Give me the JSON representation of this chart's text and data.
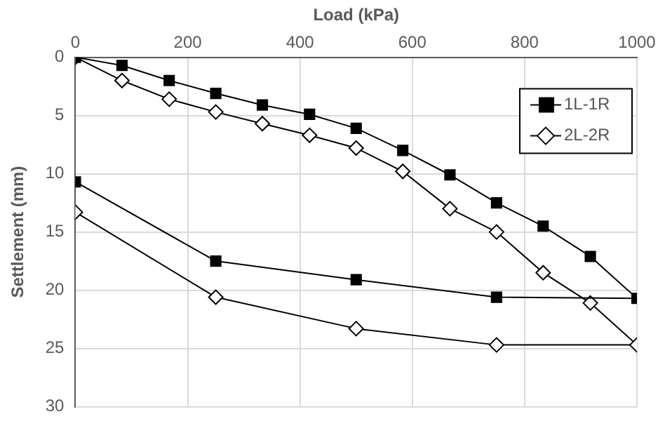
{
  "chart_data": {
    "type": "line",
    "xlabel": "Load (kPa)",
    "ylabel": "Settlement (mm)",
    "xlim": [
      0,
      1000
    ],
    "xticks": [
      0,
      200,
      400,
      600,
      800,
      1000
    ],
    "ylim": [
      30,
      0
    ],
    "yticks": [
      0,
      5,
      10,
      15,
      20,
      25,
      30
    ],
    "grid": true,
    "legend": "top right",
    "line_style": "solid",
    "series": [
      {
        "name": "1L-1R",
        "color": "#000000",
        "marker": "square",
        "x": [
          0,
          83,
          167,
          250,
          333,
          417,
          500,
          583,
          667,
          750,
          833,
          917,
          1000,
          750,
          500,
          250,
          0
        ],
        "values": [
          0,
          0.7,
          2.0,
          3.1,
          4.1,
          4.9,
          6.1,
          8.0,
          10.1,
          12.5,
          14.5,
          17.1,
          20.7,
          20.6,
          19.1,
          17.5,
          10.7
        ]
      },
      {
        "name": "2L-2R",
        "color": "#000000",
        "marker": "diamond",
        "x": [
          0,
          83,
          167,
          250,
          333,
          417,
          500,
          583,
          667,
          750,
          833,
          917,
          1000,
          750,
          500,
          250,
          0
        ],
        "values": [
          0,
          2.0,
          3.6,
          4.7,
          5.7,
          6.7,
          7.8,
          9.8,
          13.0,
          15.0,
          18.5,
          21.1,
          24.7,
          24.7,
          23.3,
          20.6,
          13.3
        ]
      }
    ]
  }
}
